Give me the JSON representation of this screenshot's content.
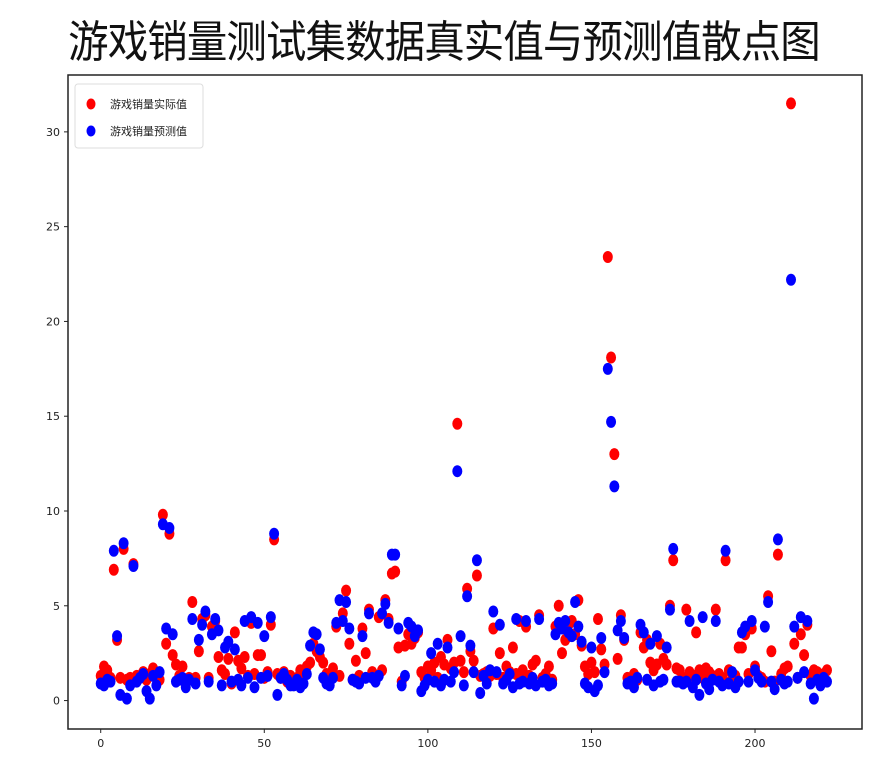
{
  "chart_data": {
    "type": "scatter",
    "title": "游戏销量测试集数据真实值与预测值散点图",
    "xlabel": "",
    "ylabel": "",
    "xlim": [
      -10,
      232.7
    ],
    "ylim": [
      -1.5,
      33
    ],
    "xticks": [
      0,
      50,
      100,
      150,
      200
    ],
    "yticks": [
      0,
      5,
      10,
      15,
      20,
      25,
      30
    ],
    "grid": false,
    "legend_position": "top-left",
    "series": [
      {
        "name": "游戏销量实际值",
        "color": "#ff0000",
        "values": [
          1.3,
          1.8,
          1.6,
          1.2,
          6.9,
          3.2,
          1.2,
          8.0,
          1.1,
          1.2,
          7.2,
          1.3,
          1.2,
          1.5,
          1.1,
          1.4,
          1.7,
          1.3,
          1.1,
          9.8,
          3.0,
          8.8,
          2.4,
          1.9,
          1.3,
          1.8,
          1.1,
          1.2,
          5.2,
          1.2,
          2.6,
          4.3,
          4.5,
          1.2,
          3.9,
          4.2,
          2.3,
          1.6,
          1.4,
          2.2,
          0.9,
          3.6,
          2.1,
          1.7,
          2.3,
          1.3,
          4.1,
          1.4,
          2.4,
          2.4,
          1.2,
          1.5,
          4.0,
          8.5,
          1.4,
          1.2,
          1.5,
          1.0,
          1.3,
          1.1,
          1.2,
          1.6,
          1.4,
          1.8,
          2.0,
          3.0,
          2.6,
          2.3,
          2.0,
          1.4,
          1.1,
          1.7,
          3.9,
          1.3,
          4.6,
          5.8,
          3.0,
          1.1,
          2.1,
          1.3,
          3.8,
          2.5,
          4.8,
          1.5,
          1.2,
          4.4,
          1.6,
          5.3,
          4.3,
          6.7,
          6.8,
          2.8,
          1.0,
          2.9,
          3.5,
          3.0,
          3.3,
          3.6,
          1.5,
          1.2,
          1.8,
          1.6,
          2.0,
          1.2,
          2.3,
          1.9,
          3.2,
          1.7,
          2.0,
          14.6,
          2.1,
          1.5,
          5.9,
          2.6,
          2.1,
          6.6,
          1.3,
          1.4,
          1.5,
          1.3,
          3.8,
          1.4,
          2.5,
          1.2,
          1.8,
          1.5,
          2.8,
          1.4,
          4.2,
          1.6,
          3.9,
          1.3,
          1.9,
          2.1,
          4.5,
          1.2,
          1.4,
          1.8,
          1.1,
          3.9,
          5.0,
          2.5,
          3.2,
          4.0,
          4.2,
          3.5,
          5.3,
          2.9,
          1.8,
          1.4,
          2.0,
          1.5,
          4.3,
          2.7,
          1.9,
          23.4,
          18.1,
          13.0,
          2.2,
          4.5,
          3.2,
          1.2,
          0.9,
          1.4,
          1.1,
          3.6,
          2.8,
          3.2,
          2.0,
          1.6,
          1.9,
          3.0,
          2.2,
          1.9,
          5.0,
          7.4,
          1.7,
          1.6,
          1.2,
          4.8,
          1.5,
          1.3,
          3.6,
          1.6,
          1.2,
          1.7,
          1.5,
          1.3,
          4.8,
          1.4,
          1.2,
          7.4,
          1.6,
          1.2,
          1.3,
          2.8,
          2.8,
          3.5,
          1.4,
          3.8,
          1.8,
          1.3,
          1.2,
          1.0,
          5.5,
          2.6,
          1.0,
          7.7,
          1.4,
          1.7,
          1.8,
          31.5,
          3.0,
          1.2,
          3.5,
          2.4,
          4.0,
          1.3,
          1.6,
          1.5,
          1.2,
          1.4,
          1.6
        ]
      },
      {
        "name": "游戏销量预测值",
        "color": "#0000ff",
        "values": [
          0.9,
          0.8,
          1.1,
          1.0,
          7.9,
          3.4,
          0.3,
          8.3,
          0.1,
          0.8,
          7.1,
          1.0,
          1.2,
          1.4,
          0.5,
          0.1,
          1.3,
          0.8,
          1.5,
          9.3,
          3.8,
          9.1,
          3.5,
          1.0,
          1.1,
          1.2,
          0.7,
          1.1,
          4.3,
          0.9,
          3.2,
          4.0,
          4.7,
          1.0,
          3.5,
          4.3,
          3.7,
          0.8,
          2.8,
          3.1,
          1.0,
          2.7,
          1.1,
          0.8,
          4.2,
          1.2,
          4.4,
          0.7,
          4.1,
          1.2,
          3.4,
          1.3,
          4.4,
          8.8,
          0.3,
          1.2,
          1.4,
          1.1,
          0.8,
          0.8,
          1.1,
          0.7,
          0.9,
          1.4,
          2.9,
          3.6,
          3.5,
          2.7,
          1.2,
          0.9,
          0.8,
          1.2,
          4.1,
          5.3,
          4.2,
          5.2,
          3.8,
          1.1,
          1.0,
          0.9,
          3.4,
          1.2,
          4.6,
          1.2,
          1.0,
          1.3,
          4.6,
          5.1,
          4.1,
          7.7,
          7.7,
          3.8,
          0.8,
          1.3,
          4.1,
          3.9,
          3.4,
          3.7,
          0.5,
          0.8,
          1.1,
          2.5,
          1.0,
          3.0,
          0.8,
          1.1,
          2.8,
          1.0,
          1.5,
          12.1,
          3.4,
          0.8,
          5.5,
          2.9,
          1.5,
          7.4,
          0.4,
          1.3,
          0.9,
          1.6,
          4.7,
          1.5,
          4.0,
          0.9,
          1.1,
          1.4,
          0.7,
          4.3,
          0.9,
          1.0,
          4.2,
          0.9,
          1.2,
          0.8,
          4.3,
          1.0,
          1.1,
          0.8,
          0.9,
          3.5,
          4.1,
          3.8,
          4.2,
          3.6,
          3.4,
          5.2,
          3.9,
          3.1,
          0.9,
          0.7,
          2.8,
          0.5,
          0.8,
          3.3,
          1.5,
          17.5,
          14.7,
          11.3,
          3.7,
          4.2,
          3.3,
          0.9,
          1.0,
          0.7,
          1.2,
          4.0,
          3.6,
          1.1,
          3.0,
          0.8,
          3.4,
          1.0,
          1.1,
          2.8,
          4.8,
          8.0,
          1.0,
          1.0,
          0.9,
          1.0,
          4.2,
          0.7,
          1.1,
          0.3,
          4.4,
          0.9,
          0.6,
          1.1,
          4.2,
          1.0,
          0.8,
          7.9,
          0.9,
          1.5,
          0.7,
          1.0,
          3.6,
          3.9,
          1.0,
          4.2,
          1.6,
          1.2,
          1.0,
          3.9,
          5.2,
          1.0,
          0.6,
          8.5,
          1.1,
          0.9,
          1.0,
          22.2,
          3.9,
          1.2,
          4.4,
          1.5,
          4.2,
          0.9,
          0.1,
          1.1,
          0.8,
          1.2,
          1.0
        ]
      }
    ]
  }
}
